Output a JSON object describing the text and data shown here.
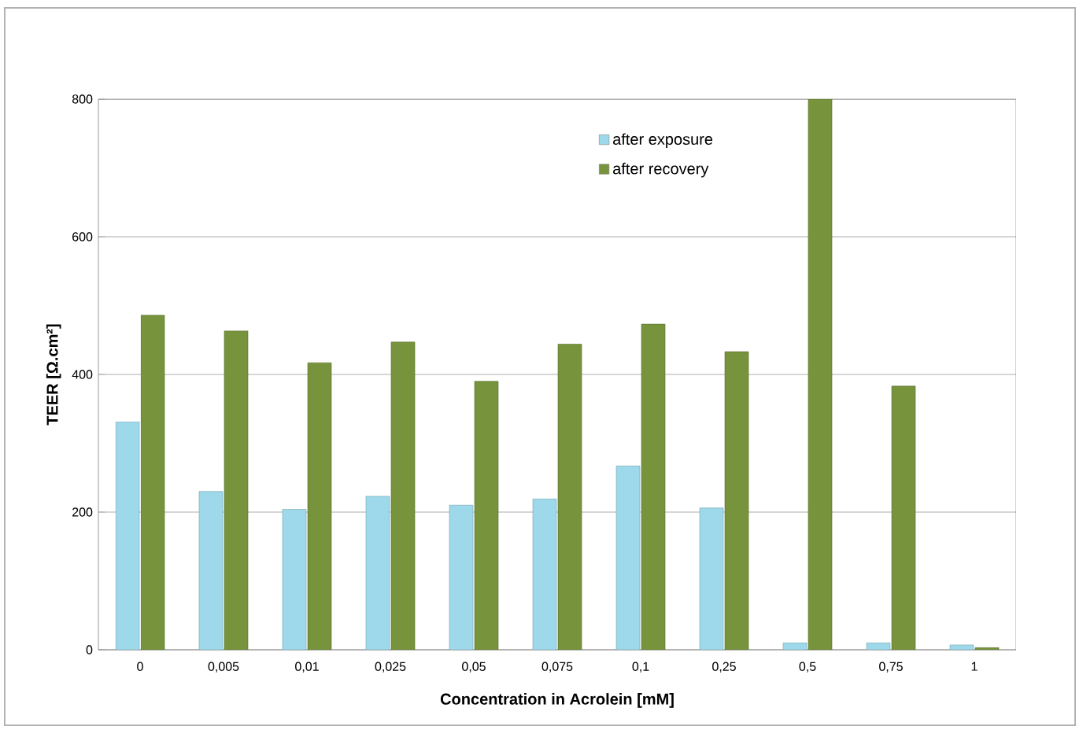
{
  "chart_data": {
    "type": "bar",
    "xlabel": "Concentration in Acrolein [mM]",
    "ylabel": "TEER [Ω.cm²]",
    "categories": [
      "0",
      "0,005",
      "0,01",
      "0,025",
      "0,05",
      "0,075",
      "0,1",
      "0,25",
      "0,5",
      "0,75",
      "1"
    ],
    "series": [
      {
        "name": "after exposure",
        "color": "#9dd9ea",
        "values": [
          331,
          230,
          204,
          223,
          210,
          219,
          267,
          206,
          10,
          10,
          7
        ]
      },
      {
        "name": "after recovery",
        "color": "#77933c",
        "values": [
          486,
          463,
          417,
          447,
          390,
          444,
          473,
          433,
          800,
          383,
          3
        ]
      }
    ],
    "ylim": [
      0,
      800
    ],
    "yticks": [
      0,
      200,
      400,
      600,
      800
    ],
    "grid": "y",
    "legend": "top right"
  }
}
